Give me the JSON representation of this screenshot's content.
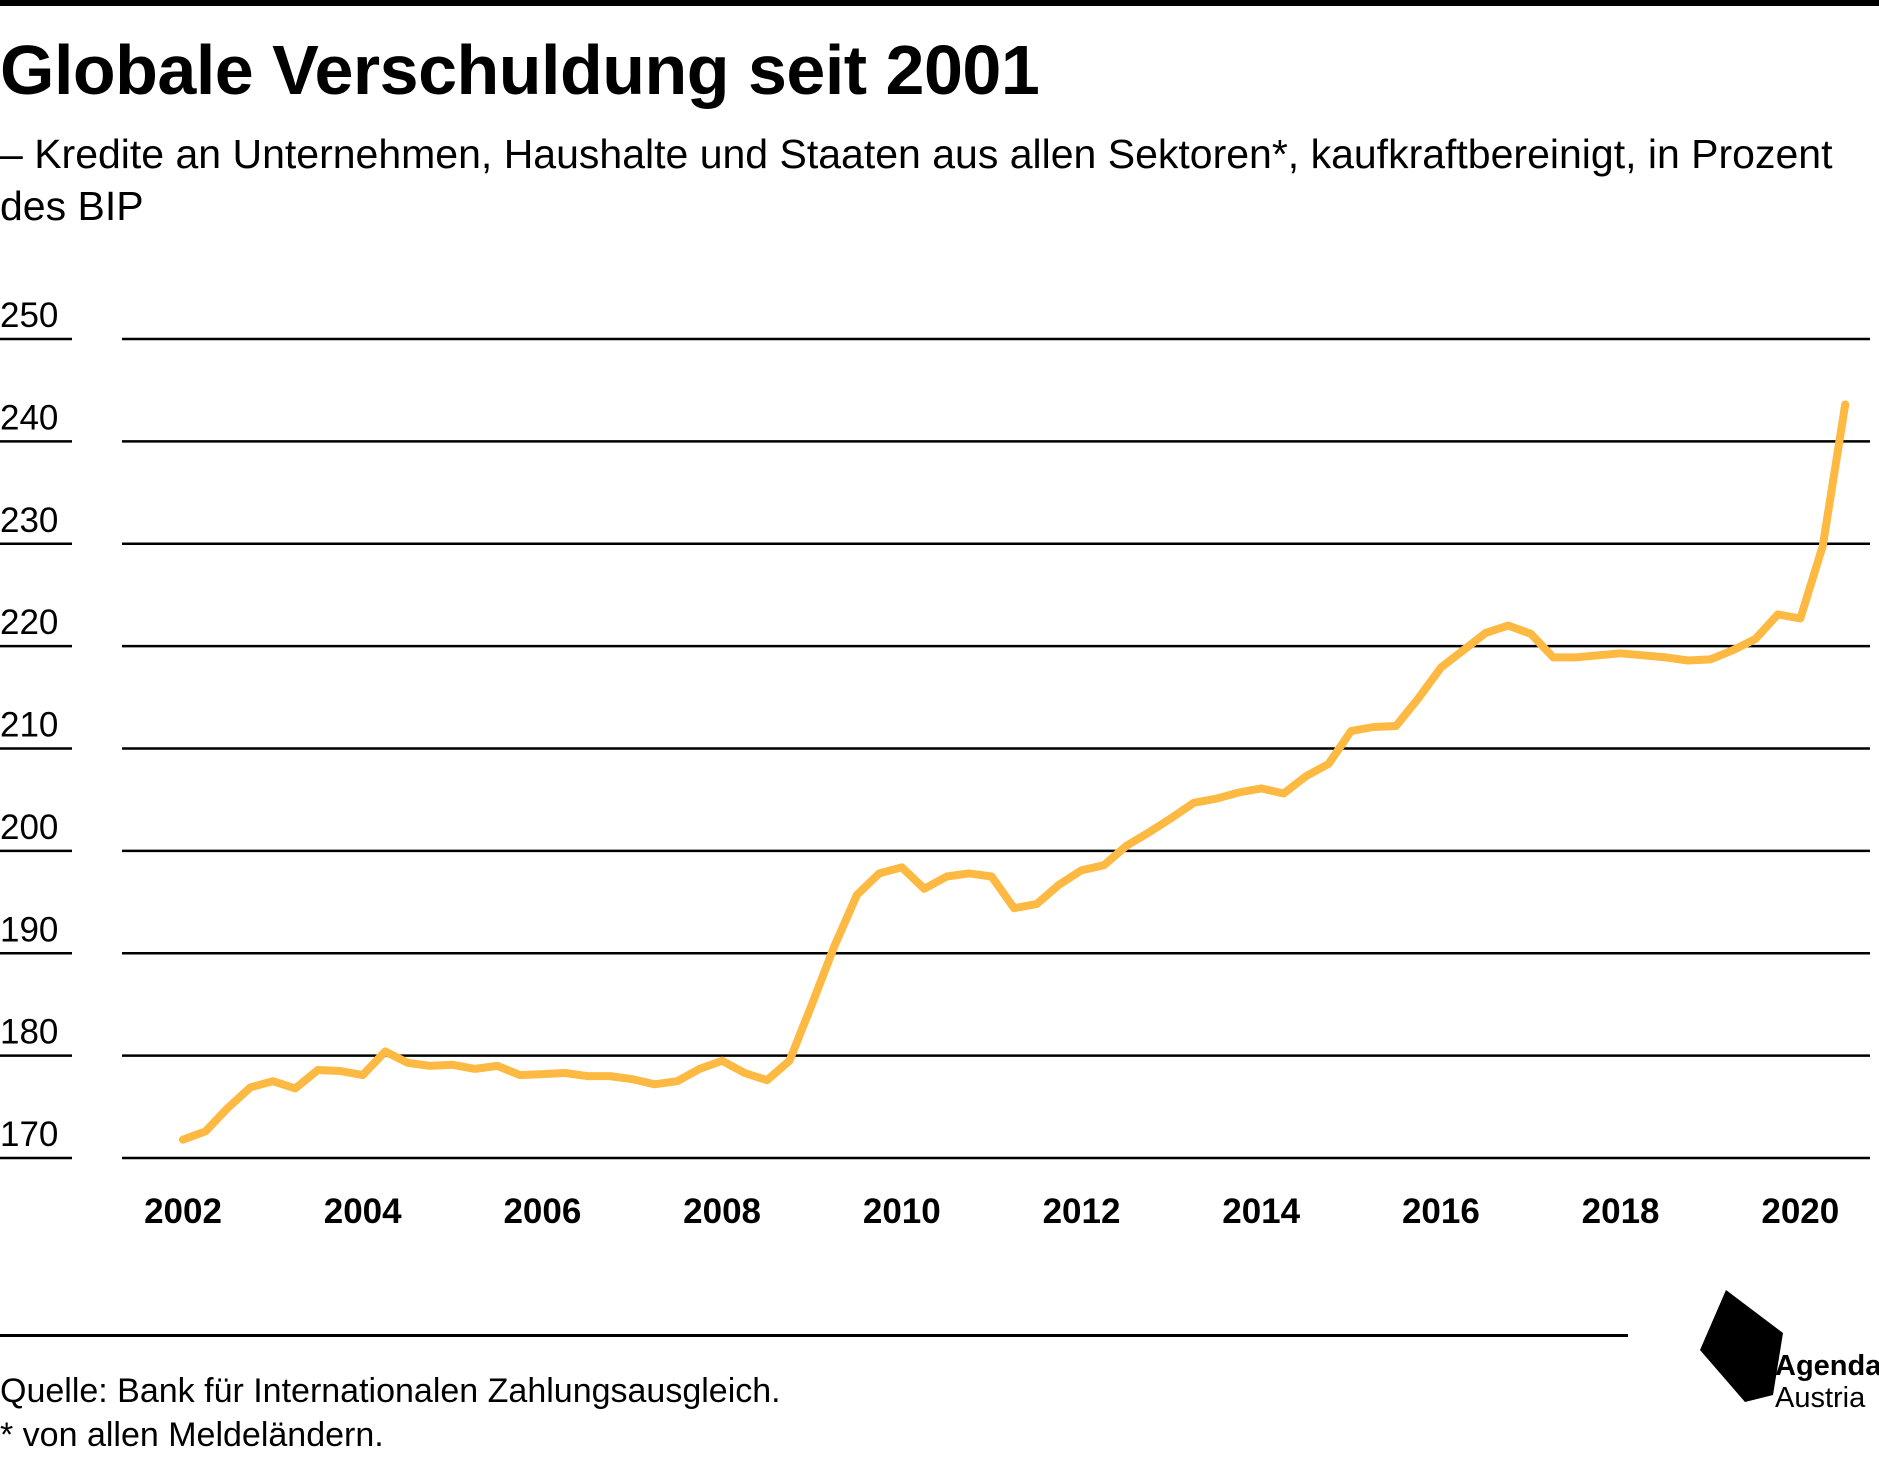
{
  "header": {
    "title": "Globale Verschuldung seit 2001",
    "subtitle": "– Kredite an Unternehmen, Haushalte und Staaten aus allen Sektoren*, kaufkraftbereinigt, in Prozent des BIP"
  },
  "footer": {
    "source": "Quelle: Bank für Internationalen Zahlungsausgleich.",
    "note": "* von allen Meldeländern."
  },
  "logo": {
    "name": "Agenda",
    "sub": "Austria"
  },
  "colors": {
    "line": "#FDB942",
    "grid": "#000000",
    "text": "#000000"
  },
  "chart_data": {
    "type": "line",
    "title": "Globale Verschuldung seit 2001",
    "subtitle": "– Kredite an Unternehmen, Haushalte und Staaten aus allen Sektoren*, kaufkraftbereinigt, in Prozent des BIP",
    "xlabel": "",
    "ylabel": "",
    "xlim": [
      2001.95,
      2021.4
    ],
    "ylim": [
      170,
      250
    ],
    "yticks": [
      170,
      180,
      190,
      200,
      210,
      220,
      230,
      240,
      250
    ],
    "xticks": [
      2002,
      2004,
      2006,
      2008,
      2010,
      2012,
      2014,
      2016,
      2018,
      2020
    ],
    "grid": "horizontal",
    "legend": "none",
    "series": [
      {
        "x": [
          2002.0,
          2002.25,
          2002.5,
          2002.75,
          2003.0,
          2003.25,
          2003.5,
          2003.75,
          2004.0,
          2004.25,
          2004.5,
          2004.75,
          2005.0,
          2005.25,
          2005.5,
          2005.75,
          2006.0,
          2006.25,
          2006.5,
          2006.75,
          2007.0,
          2007.25,
          2007.5,
          2007.75,
          2008.0,
          2008.25,
          2008.5,
          2008.75,
          2009.0,
          2009.25,
          2009.5,
          2009.75,
          2010.0,
          2010.25,
          2010.5,
          2010.75,
          2011.0,
          2011.25,
          2011.5,
          2011.75,
          2012.0,
          2012.25,
          2012.5,
          2012.75,
          2013.0,
          2013.25,
          2013.5,
          2013.75,
          2014.0,
          2014.25,
          2014.5,
          2014.75,
          2015.0,
          2015.25,
          2015.5,
          2015.75,
          2016.0,
          2016.25,
          2016.5,
          2016.75,
          2017.0,
          2017.25,
          2017.5,
          2017.75,
          2018.0,
          2018.25,
          2018.5,
          2018.75,
          2019.0,
          2019.25,
          2019.5,
          2019.75,
          2020.0,
          2020.25,
          2020.5
        ],
        "values": [
          171.8,
          172.6,
          174.9,
          176.9,
          177.5,
          176.8,
          178.6,
          178.5,
          178.1,
          180.4,
          179.3,
          179.0,
          179.1,
          178.7,
          179.0,
          178.1,
          178.2,
          178.3,
          178.0,
          178.0,
          177.7,
          177.2,
          177.5,
          178.7,
          179.5,
          178.3,
          177.6,
          179.5,
          185.0,
          190.7,
          195.7,
          197.8,
          198.4,
          196.3,
          197.5,
          197.8,
          197.5,
          194.4,
          194.8,
          196.7,
          198.1,
          198.6,
          200.5,
          201.8,
          203.2,
          204.7,
          205.1,
          205.7,
          206.1,
          205.6,
          207.3,
          208.5,
          211.7,
          212.1,
          212.2,
          214.9,
          217.9,
          219.6,
          221.3,
          222.0,
          221.2,
          218.9,
          218.9,
          219.1,
          219.3,
          219.1,
          218.9,
          218.6,
          218.7,
          219.6,
          220.7,
          223.1,
          222.7,
          229.8,
          243.6
        ]
      }
    ]
  }
}
